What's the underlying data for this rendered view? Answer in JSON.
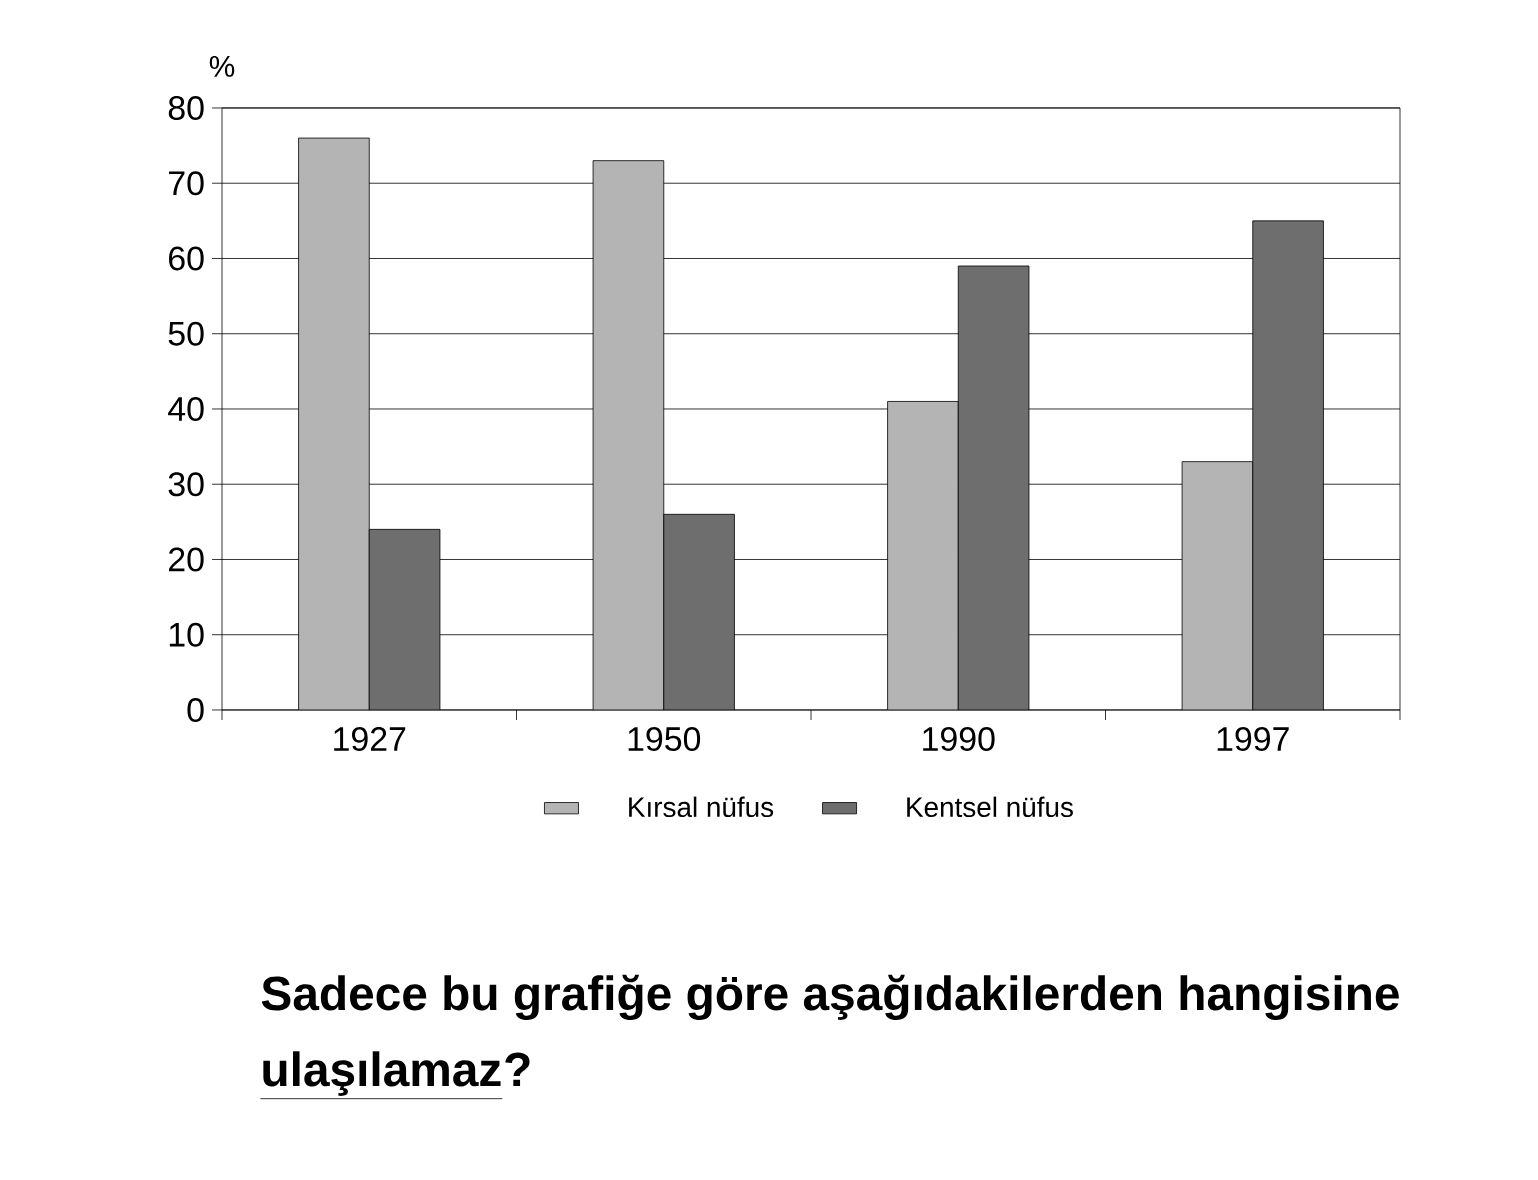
{
  "chart_data": {
    "type": "bar",
    "ylabel": "%",
    "categories": [
      "1927",
      "1950",
      "1990",
      "1997"
    ],
    "series": [
      {
        "name": "Kırsal nüfus",
        "color": "#b4b4b4",
        "values": [
          76,
          73,
          41,
          33
        ]
      },
      {
        "name": "Kentsel nüfus",
        "color": "#6e6e6e",
        "values": [
          24,
          26,
          59,
          65
        ]
      }
    ],
    "ylim": [
      0,
      80
    ],
    "yticks": [
      0,
      10,
      20,
      30,
      40,
      50,
      60,
      70,
      80
    ],
    "grid": "y",
    "legend": "bottom",
    "annotations": [
      "Sadece bu grafiğe göre aşağıdakilerden hangisine",
      "ulaşılamaz",
      "?"
    ]
  }
}
